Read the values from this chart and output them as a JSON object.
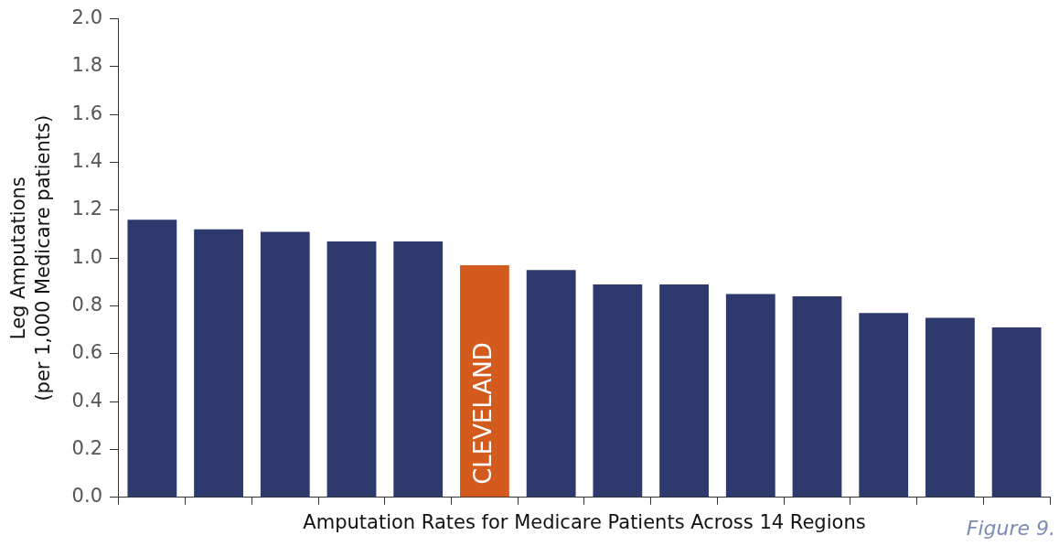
{
  "chart_data": {
    "type": "bar",
    "xlabel": "Amputation Rates for Medicare Patients Across 14 Regions",
    "ylabel": "Leg Amputations\n(per 1,000 Medicare patients)",
    "annotations": [
      "Figure 9."
    ],
    "categories": [
      null,
      null,
      null,
      null,
      null,
      "CLEVELAND",
      null,
      null,
      null,
      null,
      null,
      null,
      null,
      null
    ],
    "values": [
      1.16,
      1.12,
      1.11,
      1.07,
      1.07,
      0.97,
      0.95,
      0.89,
      0.89,
      0.85,
      0.84,
      0.77,
      0.75,
      0.71
    ],
    "colors": [
      "#2e3a6e",
      "#2e3a6e",
      "#2e3a6e",
      "#2e3a6e",
      "#2e3a6e",
      "#d35b1e",
      "#2e3a6e",
      "#2e3a6e",
      "#2e3a6e",
      "#2e3a6e",
      "#2e3a6e",
      "#2e3a6e",
      "#2e3a6e",
      "#2e3a6e"
    ],
    "ylim": [
      0,
      2
    ],
    "yticks": [
      {
        "value": 0,
        "label": "0.0"
      },
      0.2,
      0.4,
      0.6,
      0.8,
      {
        "value": 1,
        "label": "1.0"
      },
      1.2,
      1.4,
      1.6,
      1.8,
      {
        "value": 2,
        "label": "2.0"
      }
    ],
    "grid": false,
    "legend": false
  }
}
